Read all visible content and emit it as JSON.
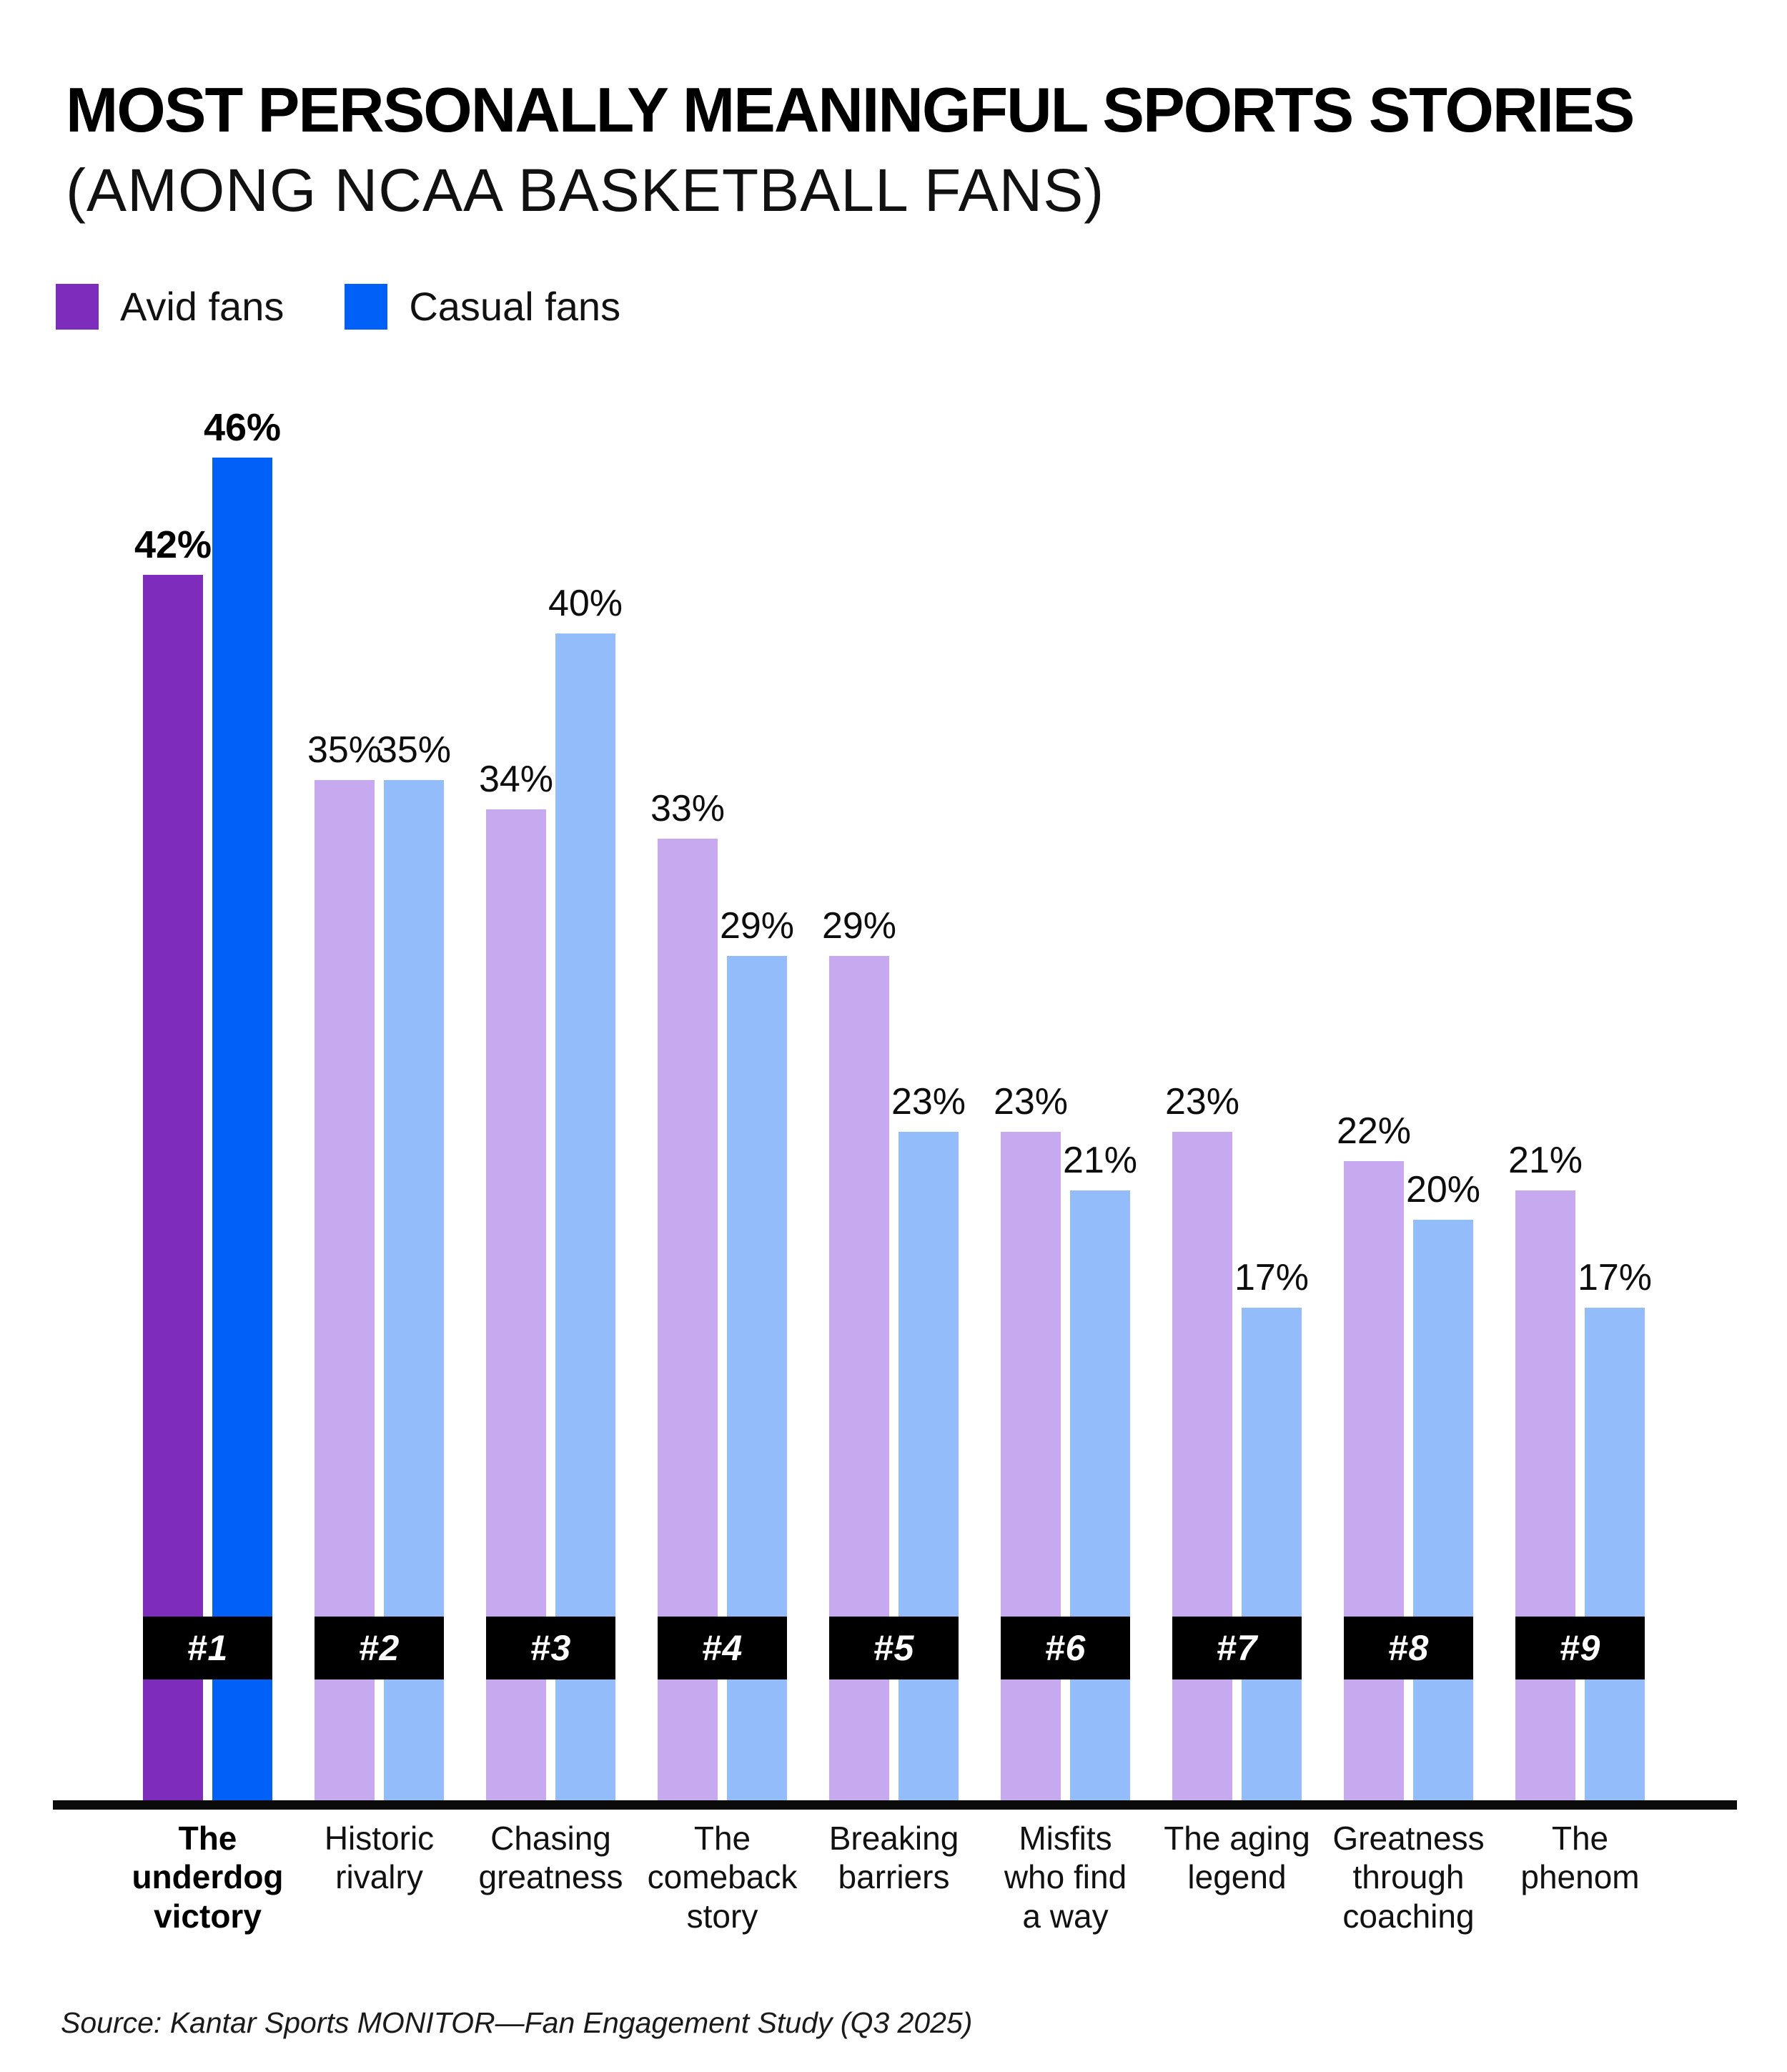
{
  "header": {
    "title": "MOST PERSONALLY MEANINGFUL SPORTS STORIES",
    "subtitle": "(AMONG NCAA BASKETBALL FANS)"
  },
  "legend": {
    "items": [
      {
        "label": "Avid fans",
        "color": "#7D2CBC"
      },
      {
        "label": "Casual fans",
        "color": "#0060F8"
      }
    ]
  },
  "chart_data": {
    "type": "bar",
    "title": "MOST PERSONALLY MEANINGFUL SPORTS STORIES (AMONG NCAA BASKETBALL FANS)",
    "categories": [
      "The\nunderdog\nvictory",
      "Historic\nrivalry",
      "Chasing\ngreatness",
      "The\ncomeback\nstory",
      "Breaking\nbarriers",
      "Misfits\nwho find\na way",
      "The aging\nlegend",
      "Greatness\nthrough\ncoaching",
      "The\nphenom"
    ],
    "ranks": [
      "#1",
      "#2",
      "#3",
      "#4",
      "#5",
      "#6",
      "#7",
      "#8",
      "#9"
    ],
    "series": [
      {
        "name": "Avid fans",
        "values": [
          42,
          35,
          34,
          33,
          29,
          23,
          23,
          22,
          21
        ]
      },
      {
        "name": "Casual fans",
        "values": [
          46,
          35,
          40,
          29,
          23,
          21,
          17,
          20,
          17
        ]
      }
    ],
    "value_suffix": "%",
    "highlight_index": 0,
    "colors": {
      "avid_highlight": "#7D2CBC",
      "casual_highlight": "#0060F8",
      "avid_muted": "#C7A9F0",
      "casual_muted": "#92BDFA",
      "rank_bg": "#000000",
      "rank_text": "#FFFFFF",
      "axis": "#0B0B0B"
    },
    "ylim": [
      0,
      50
    ],
    "grid": false,
    "legend_position": "top-left",
    "xlabel": "",
    "ylabel": ""
  },
  "footer": {
    "source": "Source: Kantar Sports MONITOR—Fan Engagement Study (Q3 2025)"
  }
}
